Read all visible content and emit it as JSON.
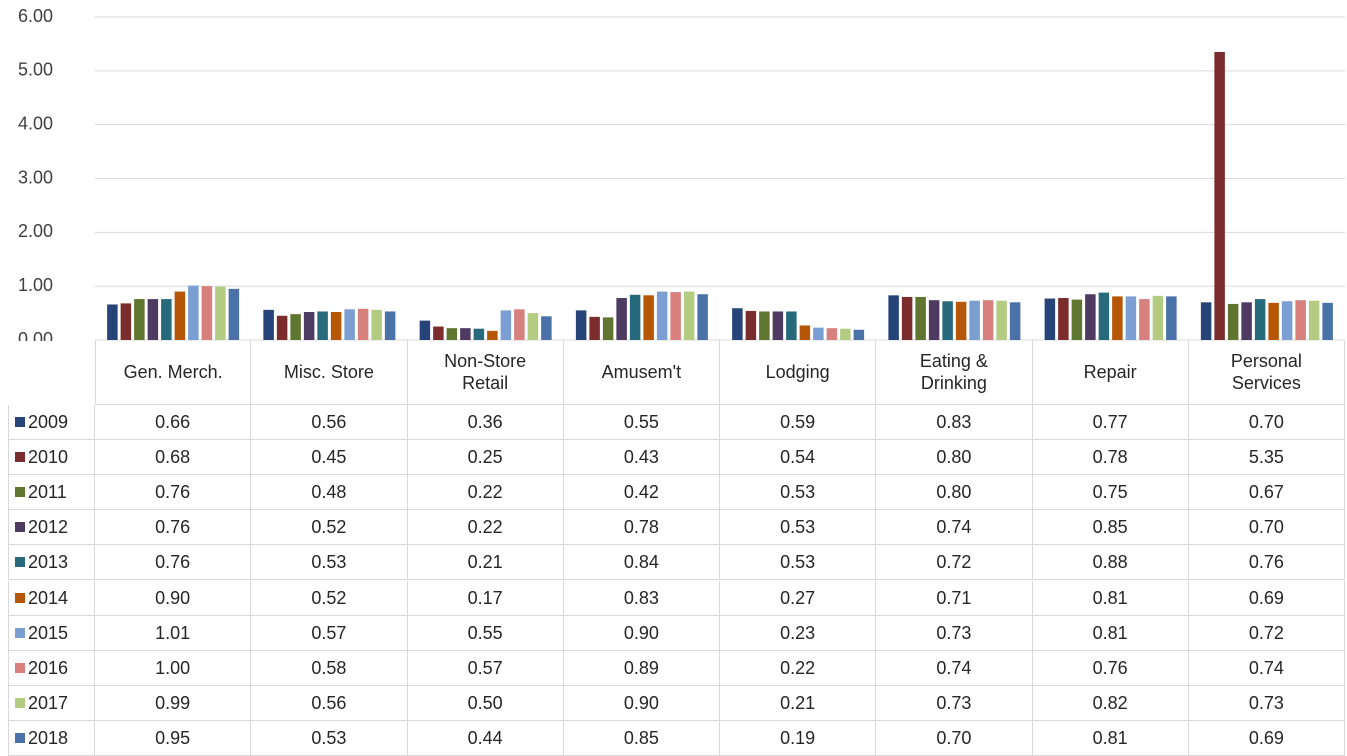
{
  "chart_data": {
    "type": "bar",
    "categories": [
      "Gen. Merch.",
      "Misc. Store",
      "Non-Store Retail",
      "Amusem't",
      "Lodging",
      "Eating & Drinking",
      "Repair",
      "Personal Services"
    ],
    "ylim": [
      0,
      6
    ],
    "yticks": [
      {
        "value": 0,
        "label": "0.00"
      },
      {
        "value": 1,
        "label": "1.00"
      },
      {
        "value": 2,
        "label": "2.00"
      },
      {
        "value": 3,
        "label": "3.00"
      },
      {
        "value": 4,
        "label": "4.00"
      },
      {
        "value": 5,
        "label": "5.00"
      },
      {
        "value": 6,
        "label": "6.00"
      }
    ],
    "grid": true,
    "series": [
      {
        "name": "2009",
        "color": "#264478",
        "values": [
          0.66,
          0.56,
          0.36,
          0.55,
          0.59,
          0.83,
          0.77,
          0.7
        ],
        "value_labels": [
          "0.66",
          "0.56",
          "0.36",
          "0.55",
          "0.59",
          "0.83",
          "0.77",
          "0.70"
        ]
      },
      {
        "name": "2010",
        "color": "#7b2c2c",
        "values": [
          0.68,
          0.45,
          0.25,
          0.43,
          0.54,
          0.8,
          0.78,
          5.35
        ],
        "value_labels": [
          "0.68",
          "0.45",
          "0.25",
          "0.43",
          "0.54",
          "0.80",
          "0.78",
          "5.35"
        ]
      },
      {
        "name": "2011",
        "color": "#5f7530",
        "values": [
          0.76,
          0.48,
          0.22,
          0.42,
          0.53,
          0.8,
          0.75,
          0.67
        ],
        "value_labels": [
          "0.76",
          "0.48",
          "0.22",
          "0.42",
          "0.53",
          "0.80",
          "0.75",
          "0.67"
        ]
      },
      {
        "name": "2012",
        "color": "#4d3b62",
        "values": [
          0.76,
          0.52,
          0.22,
          0.78,
          0.53,
          0.74,
          0.85,
          0.7
        ],
        "value_labels": [
          "0.76",
          "0.52",
          "0.22",
          "0.78",
          "0.53",
          "0.74",
          "0.85",
          "0.70"
        ]
      },
      {
        "name": "2013",
        "color": "#276a7c",
        "values": [
          0.76,
          0.53,
          0.21,
          0.84,
          0.53,
          0.72,
          0.88,
          0.76
        ],
        "value_labels": [
          "0.76",
          "0.53",
          "0.21",
          "0.84",
          "0.53",
          "0.72",
          "0.88",
          "0.76"
        ]
      },
      {
        "name": "2014",
        "color": "#b65708",
        "values": [
          0.9,
          0.52,
          0.17,
          0.83,
          0.27,
          0.71,
          0.81,
          0.69
        ],
        "value_labels": [
          "0.90",
          "0.52",
          "0.17",
          "0.83",
          "0.27",
          "0.71",
          "0.81",
          "0.69"
        ]
      },
      {
        "name": "2015",
        "color": "#7c9fd3",
        "values": [
          1.01,
          0.57,
          0.55,
          0.9,
          0.23,
          0.73,
          0.81,
          0.72
        ],
        "value_labels": [
          "1.01",
          "0.57",
          "0.55",
          "0.90",
          "0.23",
          "0.73",
          "0.81",
          "0.72"
        ]
      },
      {
        "name": "2016",
        "color": "#d7807e",
        "values": [
          1.0,
          0.58,
          0.57,
          0.89,
          0.22,
          0.74,
          0.76,
          0.74
        ],
        "value_labels": [
          "1.00",
          "0.58",
          "0.57",
          "0.89",
          "0.22",
          "0.74",
          "0.76",
          "0.74"
        ]
      },
      {
        "name": "2017",
        "color": "#b4cc82",
        "values": [
          0.99,
          0.56,
          0.5,
          0.9,
          0.21,
          0.73,
          0.82,
          0.73
        ],
        "value_labels": [
          "0.99",
          "0.56",
          "0.50",
          "0.90",
          "0.21",
          "0.73",
          "0.82",
          "0.73"
        ]
      },
      {
        "name": "2018",
        "color": "#4a72a8",
        "values": [
          0.95,
          0.53,
          0.44,
          0.85,
          0.19,
          0.7,
          0.81,
          0.69
        ],
        "value_labels": [
          "0.95",
          "0.53",
          "0.44",
          "0.85",
          "0.19",
          "0.70",
          "0.81",
          "0.69"
        ]
      }
    ]
  }
}
